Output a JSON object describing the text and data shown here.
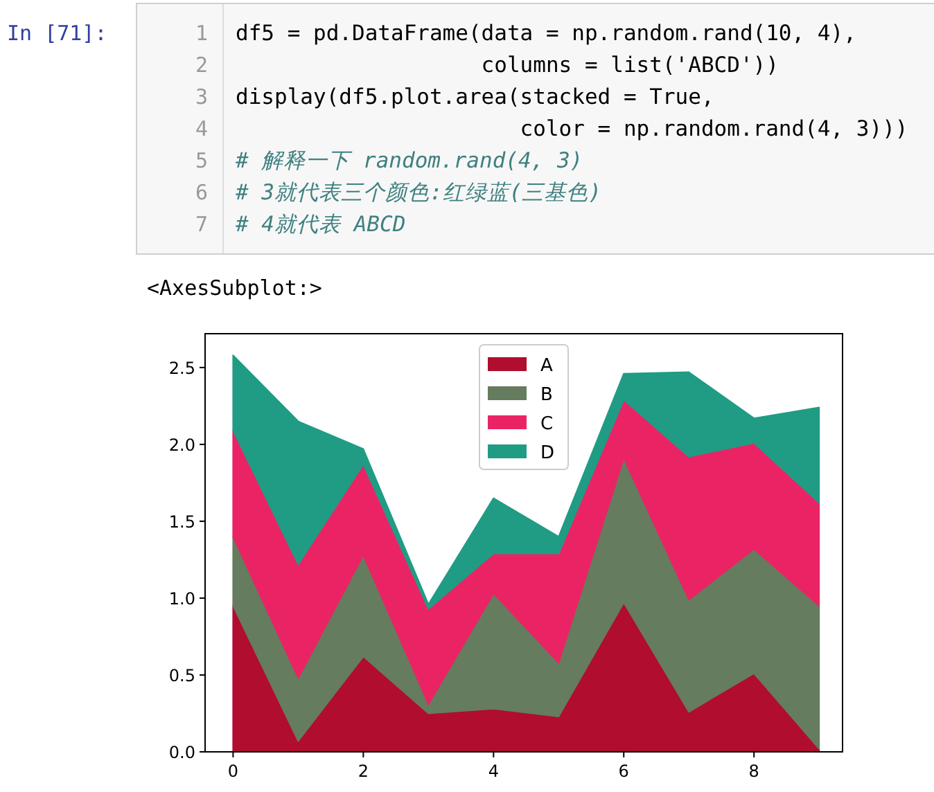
{
  "chart_data": {
    "type": "area",
    "stacked": true,
    "x": [
      0,
      1,
      2,
      3,
      4,
      5,
      6,
      7,
      8,
      9
    ],
    "series": [
      {
        "name": "A",
        "color": "#b00d2f",
        "values": [
          0.95,
          0.07,
          0.62,
          0.25,
          0.28,
          0.23,
          0.97,
          0.26,
          0.51,
          0.02
        ]
      },
      {
        "name": "B",
        "color": "#657c5e",
        "values": [
          0.45,
          0.41,
          0.66,
          0.06,
          0.75,
          0.35,
          0.94,
          0.73,
          0.81,
          0.93
        ]
      },
      {
        "name": "C",
        "color": "#ea2464",
        "values": [
          0.69,
          0.74,
          0.59,
          0.62,
          0.26,
          0.71,
          0.38,
          0.93,
          0.69,
          0.67
        ]
      },
      {
        "name": "D",
        "color": "#209c84",
        "values": [
          0.49,
          0.93,
          0.1,
          0.03,
          0.36,
          0.11,
          0.17,
          0.55,
          0.16,
          0.62
        ]
      }
    ],
    "xlim": [
      -0.43,
      9.36
    ],
    "ylim": [
      0,
      2.72
    ],
    "xticks": [
      0,
      2,
      4,
      6,
      8
    ],
    "yticks": [
      {
        "value": 0,
        "label": "0.0"
      },
      0.5,
      {
        "value": 1,
        "label": "1.0"
      },
      1.5,
      {
        "value": 2,
        "label": "2.0"
      },
      2.5
    ],
    "grid": false,
    "legend": "top",
    "annotations": [
      "In  [71]:",
      "1",
      "2",
      "3",
      "4",
      "5",
      "6",
      "7",
      "df5 = pd.DataFrame(data = np.random.rand(10, 4),",
      "                   columns = list('ABCD'))",
      "display(df5.plot.area(stacked = True,",
      "                      color = np.random.rand(4, 3)))",
      "# 解释一下 random.rand(4, 3)",
      "# 3就代表三个颜色:红绿蓝(三基色)",
      "# 4就代表 ABCD",
      "<AxesSubplot:>"
    ]
  }
}
